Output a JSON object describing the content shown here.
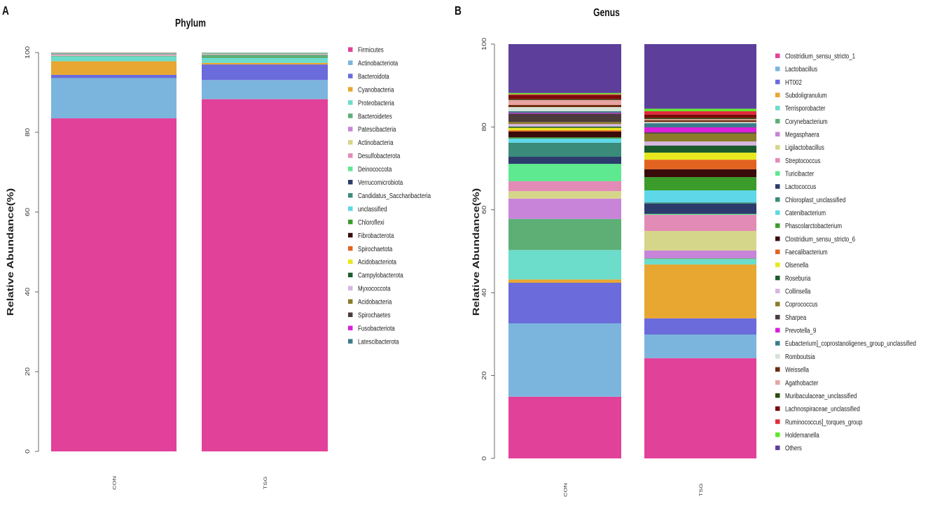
{
  "chart_data": [
    {
      "type": "bar",
      "stacked": true,
      "panel": "A",
      "title": "Phylum",
      "xlabel": "",
      "ylabel": "Relative Abundance(%)",
      "ylim": [
        0,
        100
      ],
      "yticks": [
        0,
        20,
        40,
        60,
        80,
        100
      ],
      "categories": [
        "CON",
        "TSG"
      ],
      "legend_position": "right",
      "series": [
        {
          "name": "Firmicutes",
          "color": "#e2419a",
          "values": [
            83.5,
            88.3
          ]
        },
        {
          "name": "Actinobacteriota",
          "color": "#7bb5dd",
          "values": [
            10.1,
            4.8
          ]
        },
        {
          "name": "Bacteroidota",
          "color": "#6b6bdb",
          "values": [
            0.8,
            3.9
          ]
        },
        {
          "name": "Cyanobacteria",
          "color": "#e8a731",
          "values": [
            3.4,
            0.4
          ]
        },
        {
          "name": "Proteobacteria",
          "color": "#6cdccb",
          "values": [
            1.2,
            1.2
          ]
        },
        {
          "name": "Bacteroidetes",
          "color": "#5daf76",
          "values": [
            0.15,
            0.8
          ]
        },
        {
          "name": "Patescibacteria",
          "color": "#c784d9",
          "values": [
            0.1,
            0.1
          ]
        },
        {
          "name": "Actinobacteria",
          "color": "#d6d68a",
          "values": [
            0.1,
            0.1
          ]
        },
        {
          "name": "Desulfobacterota",
          "color": "#e38bb7",
          "values": [
            0.2,
            0.1
          ]
        },
        {
          "name": "Deinococcota",
          "color": "#5ee88f",
          "values": [
            0.05,
            0.05
          ]
        },
        {
          "name": "Verrucomicrobiota",
          "color": "#2b3b6b",
          "values": [
            0.05,
            0.05
          ]
        },
        {
          "name": "Candidatus_Saccharibacteria",
          "color": "#3b8b7b",
          "values": [
            0.05,
            0.05
          ]
        },
        {
          "name": "unclassified",
          "color": "#5ed8e8",
          "values": [
            0.1,
            0.05
          ]
        },
        {
          "name": "Chloroflexi",
          "color": "#3b9b2b",
          "values": [
            0.05,
            0.05
          ]
        },
        {
          "name": "Fibrobacterota",
          "color": "#3b0b0b",
          "values": [
            0.02,
            0.01
          ]
        },
        {
          "name": "Spirochaetota",
          "color": "#e2621f",
          "values": [
            0.02,
            0.01
          ]
        },
        {
          "name": "Acidobacteriota",
          "color": "#e8e81f",
          "values": [
            0.02,
            0.01
          ]
        },
        {
          "name": "Campylobacterota",
          "color": "#1b5b2b",
          "values": [
            0.02,
            0.01
          ]
        },
        {
          "name": "Myxococcota",
          "color": "#d6b6e2",
          "values": [
            0.02,
            0.01
          ]
        },
        {
          "name": "Acidobacteria",
          "color": "#8b7b2b",
          "values": [
            0.02,
            0.01
          ]
        },
        {
          "name": "Spirochaetes",
          "color": "#4b3b3b",
          "values": [
            0.02,
            0.01
          ]
        },
        {
          "name": "Fusobacteriota",
          "color": "#d91fd9",
          "values": [
            0.01,
            0.01
          ]
        },
        {
          "name": "Latescibacterota",
          "color": "#3b7b8b",
          "values": [
            0.01,
            0.01
          ]
        }
      ]
    },
    {
      "type": "bar",
      "stacked": true,
      "panel": "B",
      "title": "Genus",
      "xlabel": "",
      "ylabel": "Relative Abundance(%)",
      "ylim": [
        0,
        100
      ],
      "yticks": [
        0,
        20,
        40,
        60,
        80,
        100
      ],
      "categories": [
        "CON",
        "TSG"
      ],
      "legend_position": "right",
      "series": [
        {
          "name": "Clostridium_sensu_stricto_1",
          "color": "#e2419a",
          "values": [
            14.9,
            24.2
          ]
        },
        {
          "name": "Lactobacillus",
          "color": "#7bb5dd",
          "values": [
            17.7,
            5.7
          ]
        },
        {
          "name": "HT002",
          "color": "#6b6bdb",
          "values": [
            9.8,
            3.9
          ]
        },
        {
          "name": "Subdoligranulum",
          "color": "#e8a731",
          "values": [
            0.8,
            13.0
          ]
        },
        {
          "name": "Terrisporobacter",
          "color": "#6cdccb",
          "values": [
            7.1,
            1.3
          ]
        },
        {
          "name": "Corynebacterium",
          "color": "#5daf76",
          "values": [
            7.5,
            0.2
          ]
        },
        {
          "name": "Megasphaera",
          "color": "#c784d9",
          "values": [
            4.9,
            1.9
          ]
        },
        {
          "name": "Ligilactobacillus",
          "color": "#d6d68a",
          "values": [
            1.8,
            4.7
          ]
        },
        {
          "name": "Streptococcus",
          "color": "#e38bb7",
          "values": [
            2.4,
            3.9
          ]
        },
        {
          "name": "Turicibacter",
          "color": "#5ee88f",
          "values": [
            4.2,
            0.2
          ]
        },
        {
          "name": "Lactococcus",
          "color": "#2b3b6b",
          "values": [
            1.7,
            2.5
          ]
        },
        {
          "name": "Chloroplast_unclassified",
          "color": "#3b8b7b",
          "values": [
            3.4,
            0.3
          ]
        },
        {
          "name": "Catenibacterium",
          "color": "#5ed8e8",
          "values": [
            1.0,
            2.9
          ]
        },
        {
          "name": "Phascolarctobacterium",
          "color": "#3b9b2b",
          "values": [
            0.3,
            3.2
          ]
        },
        {
          "name": "Clostridium_sensu_stricto_6",
          "color": "#3b0b0b",
          "values": [
            1.4,
            1.9
          ]
        },
        {
          "name": "Faecalibacterium",
          "color": "#e2621f",
          "values": [
            0.3,
            2.3
          ]
        },
        {
          "name": "Olsenella",
          "color": "#e8e81f",
          "values": [
            0.6,
            1.7
          ]
        },
        {
          "name": "Roseburia",
          "color": "#1b5b2b",
          "values": [
            0.3,
            1.7
          ]
        },
        {
          "name": "Collinsella",
          "color": "#d6b6e2",
          "values": [
            0.6,
            1.0
          ]
        },
        {
          "name": "Coprococcus",
          "color": "#8b7b2b",
          "values": [
            0.5,
            1.9
          ]
        },
        {
          "name": "Sharpea",
          "color": "#4b3b3b",
          "values": [
            2.0,
            0.3
          ]
        },
        {
          "name": "Prevotella_9",
          "color": "#d91fd9",
          "values": [
            0.2,
            1.2
          ]
        },
        {
          "name": "Eubacterium]_coprostanoligenes_group_unclassified",
          "color": "#3b7b8b",
          "values": [
            0.4,
            1.0
          ]
        },
        {
          "name": "Romboutsia",
          "color": "#d6e2d6",
          "values": [
            1.0,
            0.3
          ]
        },
        {
          "name": "Weissella",
          "color": "#6b2b0b",
          "values": [
            0.5,
            0.4
          ]
        },
        {
          "name": "Agathobacter",
          "color": "#e8a2a2",
          "values": [
            1.2,
            0.3
          ]
        },
        {
          "name": "Muribaculaceae_unclassified",
          "color": "#2b4b0b",
          "values": [
            0.2,
            0.3
          ]
        },
        {
          "name": "Lachnospiraceae_unclassified",
          "color": "#7b0b0b",
          "values": [
            1.0,
            0.8
          ]
        },
        {
          "name": "Ruminococcus]_torques_group",
          "color": "#e22b3b",
          "values": [
            0.2,
            0.8
          ]
        },
        {
          "name": "Holdemanella",
          "color": "#5ee82b",
          "values": [
            0.3,
            0.6
          ]
        },
        {
          "name": "Others",
          "color": "#5d3f9b",
          "values": [
            11.8,
            15.6
          ]
        }
      ]
    }
  ]
}
